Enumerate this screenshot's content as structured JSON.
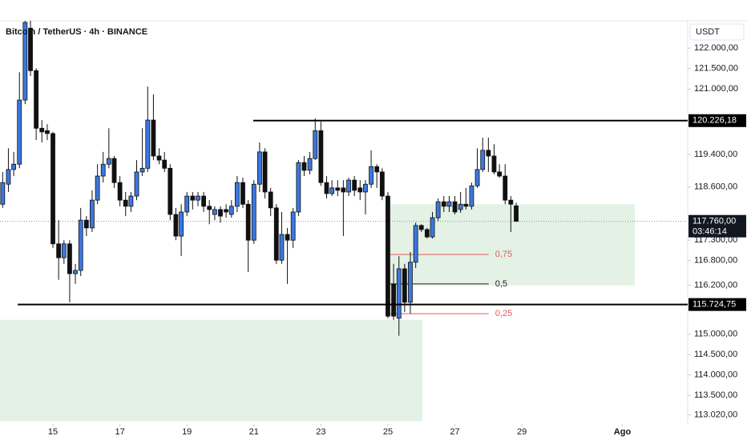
{
  "chart_data": {
    "type": "candlestick",
    "title": "Bitcoin / TetherUS · 4h · BINANCE",
    "currency": "USDT",
    "x": [
      13.5,
      13.67,
      13.83,
      14,
      14.17,
      14.33,
      14.5,
      14.67,
      14.83,
      15,
      15.17,
      15.33,
      15.5,
      15.67,
      15.83,
      16,
      16.17,
      16.33,
      16.5,
      16.67,
      16.83,
      17,
      17.17,
      17.33,
      17.5,
      17.67,
      17.83,
      18,
      18.17,
      18.33,
      18.5,
      18.67,
      18.83,
      19,
      19.17,
      19.33,
      19.5,
      19.67,
      19.83,
      20,
      20.17,
      20.33,
      20.5,
      20.67,
      20.83,
      21,
      21.17,
      21.33,
      21.5,
      21.67,
      21.83,
      22,
      22.17,
      22.33,
      22.5,
      22.67,
      22.83,
      23,
      23.17,
      23.33,
      23.5,
      23.67,
      23.83,
      24,
      24.17,
      24.33,
      24.5,
      24.67,
      24.83,
      25,
      25.17,
      25.33,
      25.5,
      25.67,
      25.83,
      26,
      26.17,
      26.33,
      26.5,
      26.67,
      26.83,
      27,
      27.17,
      27.33,
      27.5,
      27.67,
      27.83,
      28,
      28.17,
      28.33,
      28.5,
      28.67,
      28.83
    ],
    "open": [
      118180,
      118670,
      119030,
      119160,
      120730,
      122490,
      121450,
      120040,
      119980,
      119910,
      117210,
      116870,
      117210,
      116480,
      116560,
      117790,
      117600,
      118280,
      118870,
      119160,
      119300,
      118710,
      118280,
      118130,
      118380,
      118970,
      119060,
      120240,
      119360,
      119260,
      119060,
      117930,
      117400,
      117990,
      118380,
      118280,
      118380,
      118130,
      117930,
      118050,
      118050,
      117930,
      118130,
      118710,
      118180,
      117300,
      118670,
      119460,
      118480,
      118090,
      116810,
      117440,
      117300,
      117990,
      119200,
      119010,
      119300,
      119980,
      118710,
      118440,
      118580,
      118580,
      118480,
      118770,
      118580,
      118480,
      118670,
      119100,
      118970,
      118380,
      116230,
      115390,
      116600,
      115780,
      116760,
      117660,
      117560,
      117380,
      117850,
      118240,
      118130,
      118240,
      118050,
      118180,
      118130,
      118630,
      119030,
      119500,
      119360,
      118970,
      118870,
      118280,
      118140
    ],
    "high": [
      118970,
      119550,
      119460,
      121410,
      122740,
      122690,
      121510,
      120240,
      120140,
      119950,
      117790,
      117300,
      117300,
      116720,
      118090,
      117890,
      118520,
      119160,
      119460,
      120040,
      119360,
      118870,
      118480,
      118480,
      119260,
      120040,
      121060,
      120870,
      119550,
      119460,
      119160,
      118090,
      118180,
      118480,
      118480,
      118480,
      118480,
      118280,
      118130,
      118130,
      118180,
      118280,
      118870,
      118830,
      118280,
      118770,
      119690,
      119550,
      118580,
      118180,
      117990,
      117600,
      118090,
      119260,
      119360,
      119460,
      120280,
      120200,
      118870,
      118770,
      118770,
      118770,
      118830,
      118870,
      118770,
      118770,
      119500,
      119160,
      119060,
      118480,
      116720,
      116910,
      116720,
      117010,
      117730,
      117690,
      117600,
      117990,
      118320,
      118380,
      118380,
      118380,
      118480,
      118580,
      118710,
      119550,
      119810,
      119810,
      119650,
      119160,
      119160,
      118380,
      118220
    ],
    "low": [
      118090,
      118480,
      118870,
      119060,
      120630,
      121320,
      119750,
      119690,
      119750,
      117110,
      116330,
      116720,
      115780,
      116230,
      116420,
      117400,
      117500,
      118180,
      118710,
      119060,
      118580,
      118130,
      117890,
      117990,
      118280,
      118870,
      118970,
      119260,
      119160,
      118970,
      117790,
      117300,
      116910,
      117890,
      118050,
      118130,
      117990,
      117690,
      117790,
      117730,
      117850,
      117850,
      117990,
      118090,
      116520,
      117210,
      118480,
      118320,
      117890,
      116720,
      116720,
      116230,
      117110,
      117890,
      118870,
      118910,
      119260,
      118630,
      118320,
      118380,
      118380,
      117400,
      118380,
      118380,
      118280,
      117930,
      118580,
      118580,
      118280,
      115390,
      115350,
      114960,
      115540,
      115500,
      116620,
      117500,
      117340,
      117340,
      117770,
      117990,
      117990,
      117930,
      117970,
      118050,
      118050,
      118580,
      118970,
      118970,
      118910,
      118830,
      118180,
      117500,
      117790
    ],
    "close": [
      118710,
      119030,
      119160,
      120730,
      122630,
      121450,
      120040,
      119950,
      119910,
      117210,
      116870,
      117210,
      116480,
      116560,
      117790,
      117600,
      118280,
      118870,
      119160,
      119300,
      118710,
      118280,
      118130,
      118380,
      118970,
      119060,
      120240,
      119360,
      119260,
      119060,
      117930,
      117400,
      117990,
      118380,
      118280,
      118380,
      118130,
      118050,
      118050,
      117890,
      117990,
      118130,
      118710,
      118180,
      117300,
      118670,
      119460,
      118480,
      118090,
      116810,
      117440,
      117300,
      117990,
      119200,
      119010,
      119300,
      119980,
      118710,
      118440,
      118580,
      118520,
      118480,
      118770,
      118520,
      118480,
      118670,
      119100,
      118970,
      118380,
      115440,
      115440,
      116600,
      115780,
      116760,
      117660,
      117560,
      117380,
      117850,
      118240,
      118130,
      118240,
      117990,
      118180,
      118130,
      118630,
      119030,
      119500,
      119360,
      118970,
      118870,
      118280,
      118180,
      117760
    ],
    "up_color": "#3b78e0",
    "down_color": "#111111",
    "xlim": [
      13.42,
      33.95
    ],
    "xticks": [
      15,
      17,
      19,
      21,
      23,
      25,
      27,
      29,
      {
        "value": 32,
        "label": "Ago"
      }
    ],
    "ylim": [
      112800,
      122670
    ],
    "yticks": [
      {
        "value": 122000,
        "label": "122.000,00"
      },
      {
        "value": 121500,
        "label": "121.500,00"
      },
      {
        "value": 121000,
        "label": "121.000,00"
      },
      {
        "value": 119400,
        "label": "119.400,00"
      },
      {
        "value": 118600,
        "label": "118.600,00"
      },
      {
        "value": 117300,
        "label": "117.300,00"
      },
      {
        "value": 116800,
        "label": "116.800,00"
      },
      {
        "value": 116200,
        "label": "116.200,00"
      },
      {
        "value": 115000,
        "label": "115.000,00"
      },
      {
        "value": 114500,
        "label": "114.500,00"
      },
      {
        "value": 114000,
        "label": "114.000,00"
      },
      {
        "value": 113500,
        "label": "113.500,00"
      },
      {
        "value": 113020,
        "label": "113.020,00"
      }
    ],
    "last_price": {
      "value": 117760,
      "label": "117.760,00",
      "countdown": "03:46:14"
    },
    "levels": [
      {
        "value": 120226.18,
        "label": "120.226,18",
        "x_start": 20.98
      },
      {
        "value": 115724.75,
        "label": "115.724,75",
        "x_start": 13.95
      }
    ],
    "zones": [
      {
        "top": 118180,
        "bottom": 116190,
        "x_start": 25.07,
        "x_end": 32.37,
        "color": "#e3f2e5"
      },
      {
        "top": 115350,
        "bottom": 112870,
        "x_start": 13.42,
        "x_end": 26.03,
        "color": "#e3f2e5"
      }
    ],
    "fib_x": [
      25.07,
      28.01
    ],
    "fib_levels": [
      {
        "value": 116950,
        "label": "0,75",
        "color": "#e05a5a"
      },
      {
        "value": 116230,
        "label": "0,5",
        "color": "#222222"
      },
      {
        "value": 115500,
        "label": "0,25",
        "color": "#e05a5a"
      }
    ]
  }
}
